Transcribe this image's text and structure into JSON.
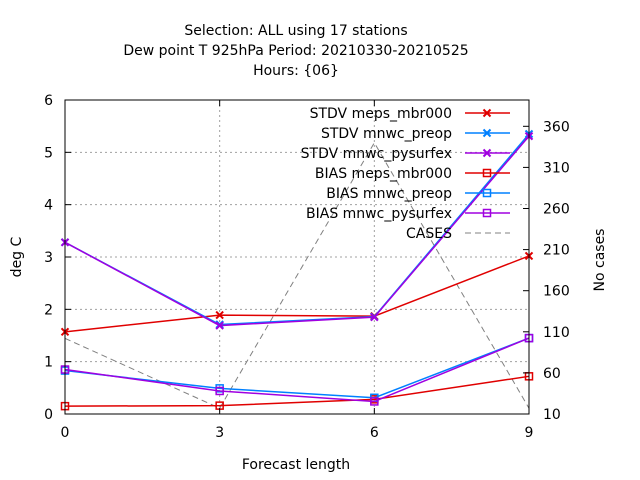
{
  "chart_data": {
    "type": "line",
    "title_lines": [
      "Selection: ALL using    17 stations",
      "Dew point T 925hPa   Period: 20210330-20210525",
      "Hours: {06}"
    ],
    "xlabel": "Forecast length",
    "ylabel": "deg C",
    "y2label": "No cases",
    "x": [
      0,
      3,
      6,
      9
    ],
    "xlim": [
      0,
      9
    ],
    "ylim": [
      0,
      6
    ],
    "y2lim": [
      10,
      392
    ],
    "xticks": [
      "0",
      "3",
      "6",
      "9"
    ],
    "yticks": [
      "0",
      "1",
      "2",
      "3",
      "4",
      "5",
      "6"
    ],
    "y2ticks": [
      "10",
      "60",
      "110",
      "160",
      "210",
      "260",
      "310",
      "360"
    ],
    "grid": true,
    "legend_position": "top-right inside",
    "series": [
      {
        "name": "STDV meps_mbr000",
        "color": "#e00000",
        "marker": "x",
        "axis": "y1",
        "values": [
          1.57,
          1.89,
          1.87,
          3.02
        ]
      },
      {
        "name": "STDV mnwc_preop",
        "color": "#0080ff",
        "marker": "x",
        "axis": "y1",
        "values": [
          3.28,
          1.71,
          1.86,
          5.35
        ]
      },
      {
        "name": "STDV mnwc_pysurfex",
        "color": "#a000e0",
        "marker": "x",
        "axis": "y1",
        "values": [
          3.28,
          1.69,
          1.85,
          5.31
        ]
      },
      {
        "name": "BIAS meps_mbr000",
        "color": "#e00000",
        "marker": "square",
        "axis": "y1",
        "values": [
          0.15,
          0.16,
          0.28,
          0.72
        ]
      },
      {
        "name": "BIAS mnwc_preop",
        "color": "#0080ff",
        "marker": "square",
        "axis": "y1",
        "values": [
          0.83,
          0.49,
          0.31,
          1.45
        ]
      },
      {
        "name": "BIAS mnwc_pysurfex",
        "color": "#a000e0",
        "marker": "square",
        "axis": "y1",
        "values": [
          0.85,
          0.44,
          0.24,
          1.45
        ]
      },
      {
        "name": "CASES",
        "color": "#808080",
        "marker": "none",
        "dashed": true,
        "axis": "y2",
        "values": [
          102,
          17,
          340,
          17
        ]
      }
    ]
  }
}
